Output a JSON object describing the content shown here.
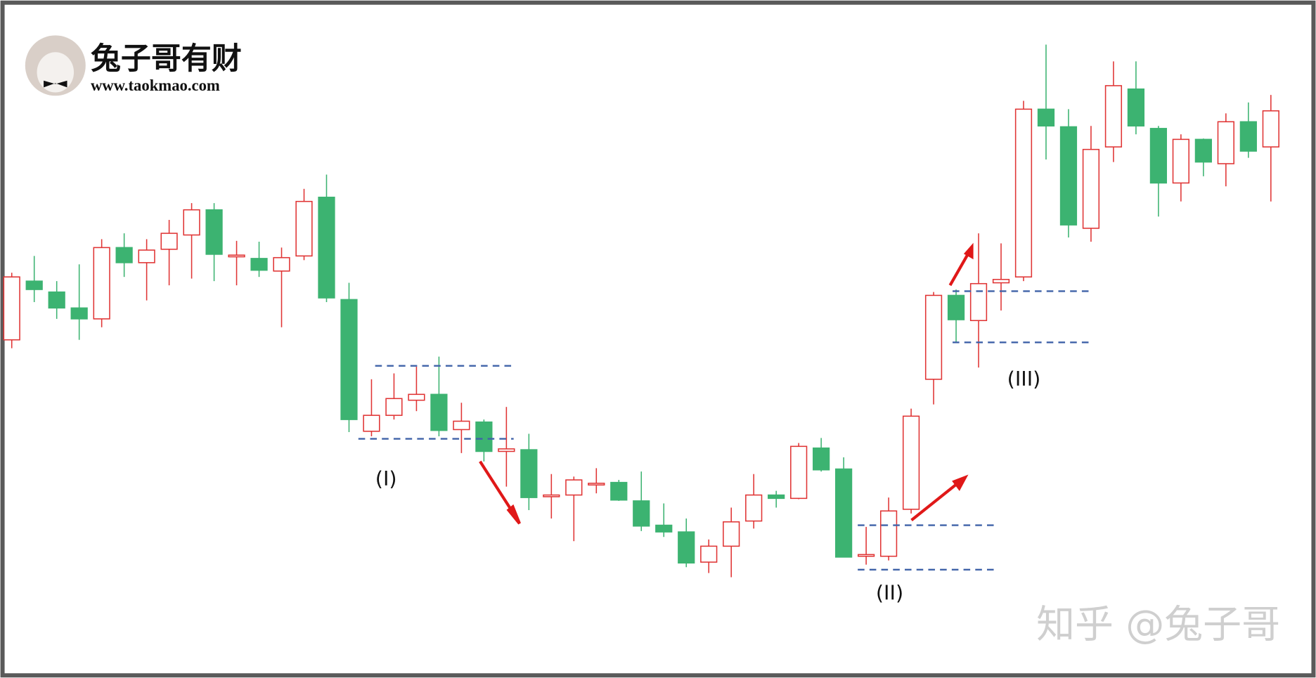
{
  "chart_data": {
    "type": "candlestick",
    "logo_title": "兔子哥有财",
    "logo_url": "www.taokmao.com",
    "watermark": "知乎 @兔子哥",
    "up_color": "#e03434",
    "down_color": "#3cb371",
    "level_color": "#3f62a8",
    "ylim": [
      0,
      800
    ],
    "open": [
      395,
      465,
      452,
      433,
      420,
      505,
      487,
      503,
      520,
      550,
      494,
      492,
      477,
      495,
      565,
      443,
      286,
      305,
      323,
      330,
      288,
      297,
      262,
      264,
      208,
      210,
      222,
      225,
      203,
      174,
      166,
      130,
      149,
      179,
      210,
      206,
      266,
      241,
      137,
      137,
      193,
      348,
      448,
      418,
      463,
      470,
      670,
      649,
      528,
      625,
      694,
      647,
      582,
      634,
      605,
      655,
      625
    ],
    "high": [
      475,
      495,
      465,
      485,
      515,
      522,
      515,
      538,
      558,
      558,
      513,
      512,
      505,
      575,
      592,
      463,
      348,
      355,
      363,
      375,
      320,
      300,
      315,
      283,
      235,
      232,
      242,
      228,
      238,
      200,
      182,
      157,
      195,
      235,
      215,
      272,
      278,
      255,
      172,
      207,
      313,
      452,
      455,
      522,
      510,
      680,
      747,
      670,
      650,
      727,
      727,
      650,
      640,
      635,
      665,
      678,
      687
    ],
    "low": [
      385,
      440,
      420,
      395,
      410,
      470,
      442,
      460,
      468,
      465,
      460,
      470,
      410,
      490,
      440,
      285,
      280,
      300,
      310,
      280,
      260,
      250,
      220,
      192,
      182,
      155,
      212,
      203,
      167,
      160,
      124,
      117,
      112,
      170,
      195,
      205,
      238,
      136,
      127,
      132,
      188,
      318,
      392,
      362,
      430,
      465,
      610,
      517,
      512,
      607,
      640,
      542,
      560,
      590,
      578,
      612,
      560
    ],
    "close": [
      470,
      455,
      433,
      420,
      505,
      487,
      502,
      522,
      550,
      497,
      496,
      478,
      493,
      560,
      445,
      300,
      305,
      325,
      330,
      287,
      298,
      262,
      265,
      207,
      210,
      228,
      224,
      204,
      173,
      166,
      129,
      149,
      178,
      210,
      206,
      268,
      240,
      136,
      139,
      191,
      304,
      448,
      419,
      462,
      467,
      670,
      650,
      532,
      622,
      698,
      650,
      582,
      634,
      607,
      655,
      620,
      668
    ],
    "levels": [
      {
        "label": "(I)",
        "values": [
          364,
          277
        ]
      },
      {
        "label": "(II)",
        "values": [
          174,
          121
        ]
      },
      {
        "label": "(III)",
        "values": [
          453,
          392
        ]
      }
    ]
  }
}
